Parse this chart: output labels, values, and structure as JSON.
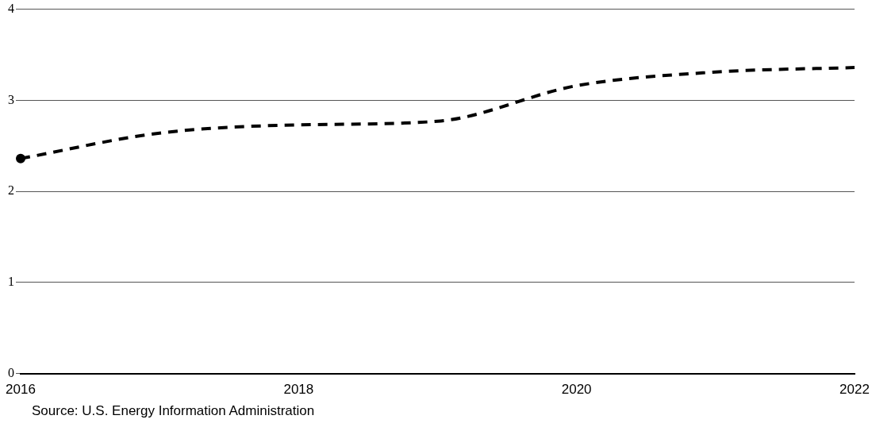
{
  "chart_data": {
    "type": "line",
    "x": [
      2016,
      2017,
      2018,
      2019,
      2020,
      2021,
      2022
    ],
    "series": [
      {
        "color": "#000000",
        "values": [
          2.36,
          2.64,
          2.73,
          2.77,
          3.16,
          3.31,
          3.36
        ]
      },
      {
        "type": "scatter",
        "color": "#000000",
        "x": [
          2016
        ],
        "values": [
          2.36
        ]
      }
    ],
    "xlim": [
      2016,
      2022
    ],
    "xticks": [
      2016,
      2018,
      2020,
      2022
    ],
    "ylim": [
      0,
      4
    ],
    "yticks": [
      0,
      1,
      2,
      3,
      4
    ],
    "grid": "y",
    "line_style": "dashed",
    "legend": false,
    "annotations": [
      "Source: U.S. Energy Information Administration"
    ]
  }
}
